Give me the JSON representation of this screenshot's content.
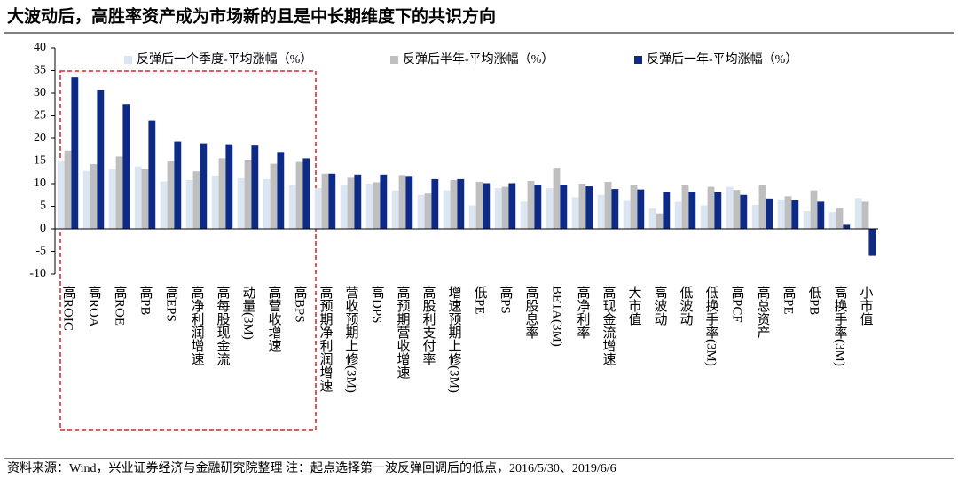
{
  "chart_data": {
    "type": "bar",
    "title": "大波动后，高胜率资产成为市场新的且是中长期维度下的共识方向",
    "source": "资料来源：Wind，兴业证券经济与金融研究院整理 注：起点选择第一波反弹回调后的低点，2016/5/30、2019/6/6",
    "categories": [
      "高ROIC",
      "高ROA",
      "高ROE",
      "高PB",
      "高EPS",
      "高净利润增速",
      "高每股现金流",
      "动量(3M)",
      "高营收增速",
      "高BPS",
      "高预期净利润增速",
      "营收预期上修(3M)",
      "高DPS",
      "高预期营收增速",
      "高股利支付率",
      "增速预期上修(3M)",
      "低PE",
      "高PS",
      "高股息率",
      "BETA(3M)",
      "高净利率",
      "高现金流增速",
      "大市值",
      "高波动",
      "低波动",
      "低换手率(3M)",
      "高PCF",
      "高总资产",
      "高PE",
      "低PB",
      "高换手率(3M)",
      "小市值"
    ],
    "series": [
      {
        "name": "反弹后一个季度-平均涨幅（%）",
        "color": "#dce6f2",
        "values": [
          15,
          12.8,
          13.2,
          13.8,
          10.5,
          10.8,
          11.8,
          11.2,
          11,
          9.7,
          9,
          9.7,
          10,
          8.5,
          7.5,
          8.5,
          5.2,
          9,
          6,
          9,
          7,
          7.5,
          6.2,
          4.5,
          6,
          5.2,
          9.3,
          5.3,
          6.5,
          3.9,
          3.7,
          6.8
        ]
      },
      {
        "name": "反弹后半年-平均涨幅（%）",
        "color": "#bfbfbf",
        "values": [
          17.3,
          14.3,
          16,
          13.3,
          15,
          12.7,
          15.6,
          15.3,
          14.4,
          14.8,
          12.2,
          11.3,
          10.3,
          11.9,
          7.8,
          10.8,
          10.4,
          9.3,
          10.6,
          13.5,
          10,
          10.4,
          9.8,
          3.4,
          9.6,
          9.3,
          8.6,
          9.6,
          7.2,
          8.5,
          4.5,
          6
        ]
      },
      {
        "name": "反弹后一年-平均涨幅（%）",
        "color": "#0d2a86",
        "values": [
          33.5,
          30.7,
          27.6,
          24,
          19.3,
          18.9,
          18.7,
          18.4,
          17,
          15.6,
          12.2,
          12,
          12,
          11.7,
          11,
          11,
          10.1,
          10.1,
          9.8,
          9.8,
          9.4,
          8.8,
          8.7,
          8.2,
          8.2,
          8.1,
          7.5,
          6.7,
          6.3,
          6,
          0.9,
          -6
        ]
      }
    ],
    "ylim": [
      -10,
      40
    ],
    "yticks": [
      -10,
      -5,
      0,
      5,
      10,
      15,
      20,
      25,
      30,
      35,
      40
    ],
    "grid": false
  }
}
